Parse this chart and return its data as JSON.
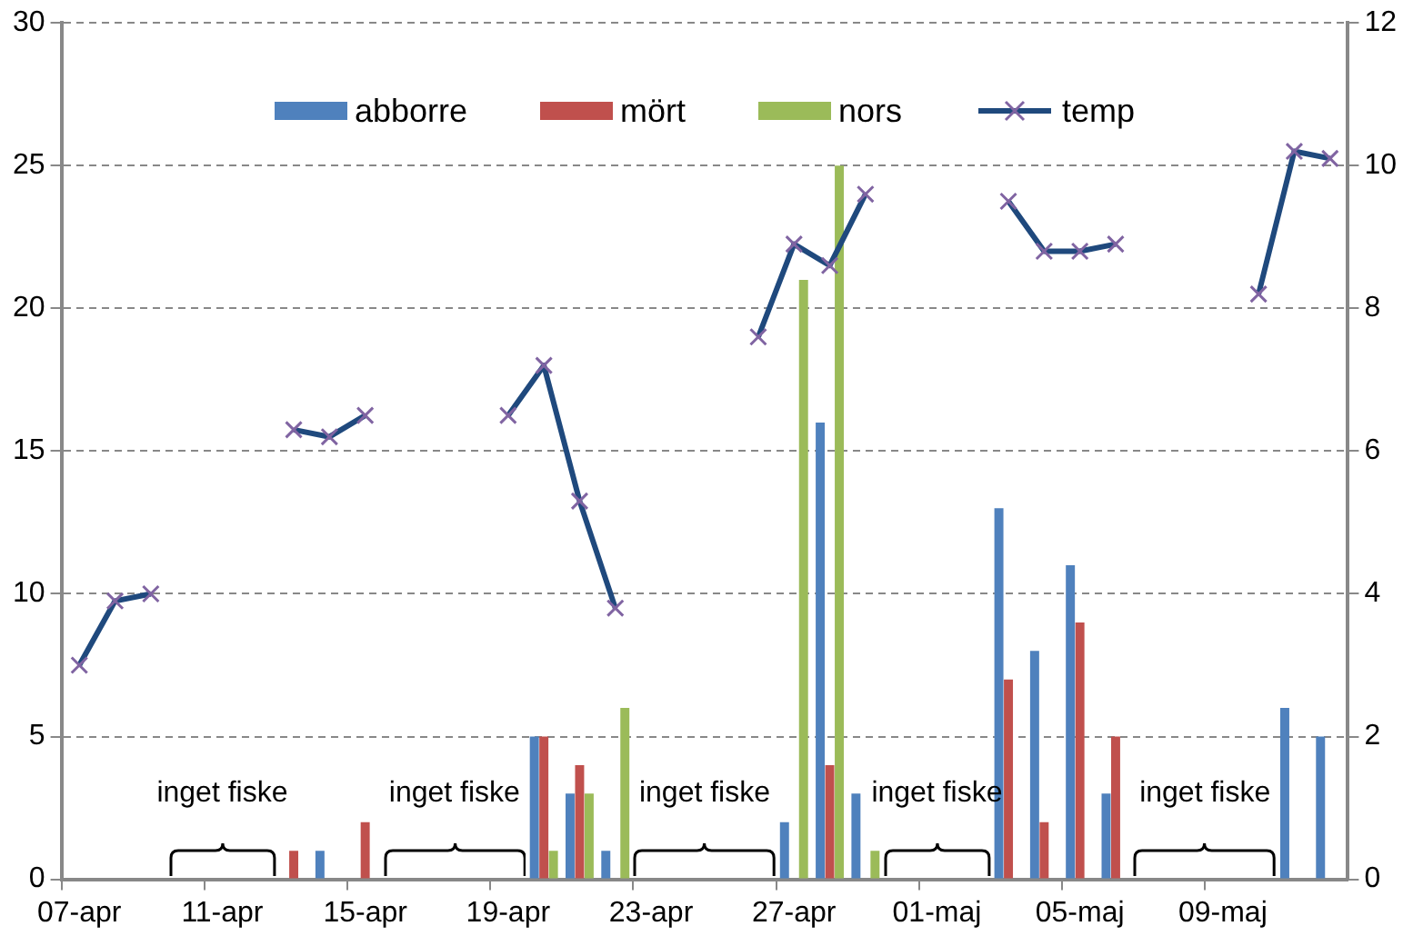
{
  "chart_data": {
    "type": "bar",
    "categories": [
      "07-apr",
      null,
      null,
      null,
      "11-apr",
      null,
      null,
      null,
      "15-apr",
      null,
      null,
      null,
      "19-apr",
      null,
      null,
      null,
      "23-apr",
      null,
      null,
      null,
      "27-apr",
      null,
      null,
      null,
      "01-maj",
      null,
      null,
      null,
      "05-maj",
      null,
      null,
      null,
      "09-maj",
      null,
      null,
      null
    ],
    "series": [
      {
        "name": "abborre",
        "color": "#4f81bd",
        "values": [
          null,
          null,
          null,
          null,
          null,
          null,
          null,
          1,
          null,
          null,
          null,
          null,
          null,
          5,
          3,
          1,
          null,
          null,
          null,
          null,
          2,
          16,
          3,
          null,
          null,
          null,
          13,
          8,
          11,
          3,
          null,
          null,
          null,
          null,
          6,
          5
        ]
      },
      {
        "name": "mört",
        "color": "#c0504d",
        "values": [
          null,
          null,
          null,
          null,
          null,
          null,
          1,
          null,
          2,
          null,
          null,
          null,
          null,
          5,
          4,
          null,
          null,
          null,
          null,
          null,
          null,
          4,
          null,
          null,
          null,
          null,
          7,
          2,
          9,
          5,
          null,
          null,
          null,
          null,
          null,
          null
        ]
      },
      {
        "name": "nors",
        "color": "#9bbb59",
        "values": [
          null,
          null,
          null,
          null,
          null,
          null,
          null,
          null,
          null,
          null,
          null,
          null,
          null,
          1,
          3,
          6,
          null,
          null,
          null,
          null,
          21,
          25,
          1,
          null,
          null,
          null,
          null,
          null,
          null,
          null,
          null,
          null,
          null,
          null,
          null,
          null
        ]
      },
      {
        "name": "temp",
        "type": "line",
        "axis": "y2",
        "color": "#1f497d",
        "marker": "cross",
        "values": [
          3.0,
          3.9,
          4.0,
          null,
          null,
          null,
          6.3,
          6.2,
          6.5,
          null,
          null,
          null,
          6.5,
          7.2,
          5.3,
          3.8,
          null,
          null,
          null,
          7.6,
          8.9,
          8.6,
          9.6,
          null,
          null,
          null,
          9.5,
          8.8,
          8.8,
          8.9,
          null,
          null,
          null,
          8.2,
          10.2,
          10.1
        ]
      }
    ],
    "ylim": [
      0,
      30
    ],
    "yticks": [
      0,
      5,
      10,
      15,
      20,
      25,
      30
    ],
    "y2lim": [
      0,
      12
    ],
    "y2ticks": [
      0,
      2,
      4,
      6,
      8,
      10,
      12
    ],
    "grid": "y",
    "legend": "top",
    "annotations": [
      "inget fiske",
      "inget fiske",
      "inget fiske",
      "inget fiske",
      "inget fiske"
    ]
  }
}
